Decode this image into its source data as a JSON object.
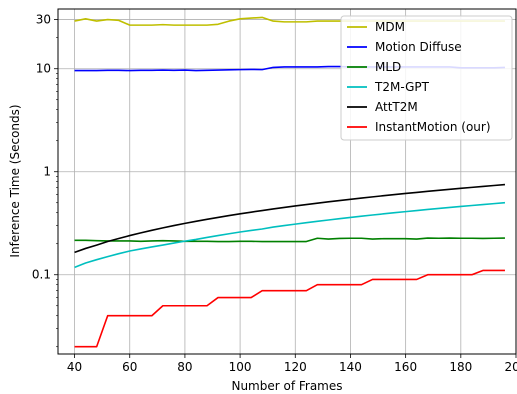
{
  "chart_data": {
    "type": "line",
    "title": "",
    "xlabel": "Number of Frames",
    "ylabel": "Inference Time (Seconds)",
    "x_scale": "linear",
    "y_scale": "log",
    "xlim": [
      34,
      200
    ],
    "ylim": [
      0.017,
      38
    ],
    "xticks": [
      40,
      60,
      80,
      100,
      120,
      140,
      160,
      180,
      200
    ],
    "xtick_labels": [
      "40",
      "60",
      "80",
      "100",
      "120",
      "140",
      "160",
      "180",
      "200"
    ],
    "yticks": [
      0.1,
      1,
      10,
      30
    ],
    "ytick_labels": [
      "0.1",
      "1",
      "10",
      "30"
    ],
    "grid": true,
    "legend_position": "top-right",
    "series": [
      {
        "name": "MDM",
        "color": "#bfbf00",
        "x": [
          40,
          44,
          48,
          52,
          56,
          60,
          64,
          68,
          72,
          76,
          80,
          84,
          88,
          92,
          96,
          100,
          104,
          108,
          112,
          116,
          120,
          124,
          128,
          132,
          136,
          140,
          144,
          148,
          152,
          156,
          160,
          164,
          168,
          172,
          176,
          180,
          184,
          188,
          192,
          196
        ],
        "values": [
          29,
          30.5,
          29,
          30,
          29.5,
          26.5,
          26.5,
          26.5,
          26.8,
          26.5,
          26.5,
          26.5,
          26.5,
          27,
          29,
          30.5,
          31,
          31.5,
          29,
          28.5,
          28.5,
          28.5,
          29,
          29,
          29,
          29,
          29,
          29,
          29,
          29,
          29,
          29,
          29,
          29,
          29,
          29,
          29,
          29,
          29,
          29
        ]
      },
      {
        "name": "Motion Diffuse",
        "color": "#0000ff",
        "x": [
          40,
          44,
          48,
          52,
          56,
          60,
          64,
          68,
          72,
          76,
          80,
          84,
          88,
          92,
          96,
          100,
          104,
          108,
          112,
          116,
          120,
          124,
          128,
          132,
          136,
          140,
          144,
          148,
          152,
          156,
          160,
          164,
          168,
          172,
          176,
          180,
          184,
          188,
          192,
          196
        ],
        "values": [
          9.6,
          9.6,
          9.6,
          9.65,
          9.65,
          9.6,
          9.65,
          9.65,
          9.7,
          9.65,
          9.7,
          9.6,
          9.65,
          9.7,
          9.75,
          9.8,
          9.85,
          9.8,
          10.3,
          10.4,
          10.4,
          10.4,
          10.4,
          10.5,
          10.5,
          10.4,
          10.4,
          10.4,
          10.4,
          10.4,
          10.4,
          10.4,
          10.4,
          10.4,
          10.4,
          10.2,
          10.2,
          10.2,
          10.2,
          10.3
        ]
      },
      {
        "name": "MLD",
        "color": "#008000",
        "x": [
          40,
          44,
          48,
          52,
          56,
          60,
          64,
          68,
          72,
          76,
          80,
          84,
          88,
          92,
          96,
          100,
          104,
          108,
          112,
          116,
          120,
          124,
          128,
          132,
          136,
          140,
          144,
          148,
          152,
          156,
          160,
          164,
          168,
          172,
          176,
          180,
          184,
          188,
          192,
          196
        ],
        "values": [
          0.216,
          0.216,
          0.214,
          0.213,
          0.213,
          0.213,
          0.211,
          0.213,
          0.214,
          0.213,
          0.211,
          0.211,
          0.211,
          0.21,
          0.21,
          0.211,
          0.211,
          0.21,
          0.21,
          0.21,
          0.21,
          0.21,
          0.226,
          0.222,
          0.225,
          0.226,
          0.226,
          0.222,
          0.224,
          0.224,
          0.224,
          0.222,
          0.227,
          0.226,
          0.227,
          0.226,
          0.226,
          0.225,
          0.226,
          0.227
        ]
      },
      {
        "name": "T2M-GPT",
        "color": "#00bfbf",
        "x": [
          40,
          44,
          48,
          52,
          56,
          60,
          64,
          68,
          72,
          76,
          80,
          84,
          88,
          92,
          96,
          100,
          104,
          108,
          112,
          116,
          120,
          124,
          128,
          132,
          136,
          140,
          144,
          148,
          152,
          156,
          160,
          164,
          168,
          172,
          176,
          180,
          184,
          188,
          192,
          196
        ],
        "values": [
          0.118,
          0.13,
          0.14,
          0.15,
          0.16,
          0.17,
          0.178,
          0.186,
          0.194,
          0.203,
          0.212,
          0.22,
          0.23,
          0.24,
          0.25,
          0.26,
          0.269,
          0.278,
          0.29,
          0.3,
          0.31,
          0.32,
          0.33,
          0.34,
          0.35,
          0.36,
          0.37,
          0.38,
          0.39,
          0.4,
          0.41,
          0.42,
          0.43,
          0.44,
          0.45,
          0.46,
          0.47,
          0.48,
          0.49,
          0.5
        ]
      },
      {
        "name": "AttT2M",
        "color": "#000000",
        "x": [
          40,
          44,
          48,
          52,
          56,
          60,
          64,
          68,
          72,
          76,
          80,
          84,
          88,
          92,
          96,
          100,
          104,
          108,
          112,
          116,
          120,
          124,
          128,
          132,
          136,
          140,
          144,
          148,
          152,
          156,
          160,
          164,
          168,
          172,
          176,
          180,
          184,
          188,
          192,
          196
        ],
        "values": [
          0.165,
          0.18,
          0.194,
          0.21,
          0.225,
          0.24,
          0.255,
          0.27,
          0.285,
          0.3,
          0.315,
          0.33,
          0.345,
          0.36,
          0.375,
          0.39,
          0.405,
          0.42,
          0.435,
          0.45,
          0.465,
          0.48,
          0.495,
          0.51,
          0.525,
          0.54,
          0.555,
          0.57,
          0.585,
          0.6,
          0.615,
          0.63,
          0.645,
          0.66,
          0.675,
          0.69,
          0.705,
          0.72,
          0.735,
          0.75
        ]
      },
      {
        "name": "InstantMotion (our)",
        "color": "#ff0000",
        "x": [
          40,
          44,
          48,
          52,
          56,
          60,
          64,
          68,
          72,
          76,
          80,
          84,
          88,
          92,
          96,
          100,
          104,
          108,
          112,
          116,
          120,
          124,
          128,
          132,
          136,
          140,
          144,
          148,
          152,
          156,
          160,
          164,
          168,
          172,
          176,
          180,
          184,
          188,
          192,
          196
        ],
        "values": [
          0.02,
          0.02,
          0.02,
          0.04,
          0.04,
          0.04,
          0.04,
          0.04,
          0.05,
          0.05,
          0.05,
          0.05,
          0.05,
          0.06,
          0.06,
          0.06,
          0.06,
          0.07,
          0.07,
          0.07,
          0.07,
          0.07,
          0.08,
          0.08,
          0.08,
          0.08,
          0.08,
          0.09,
          0.09,
          0.09,
          0.09,
          0.09,
          0.1,
          0.1,
          0.1,
          0.1,
          0.1,
          0.11,
          0.11,
          0.11
        ]
      }
    ]
  }
}
